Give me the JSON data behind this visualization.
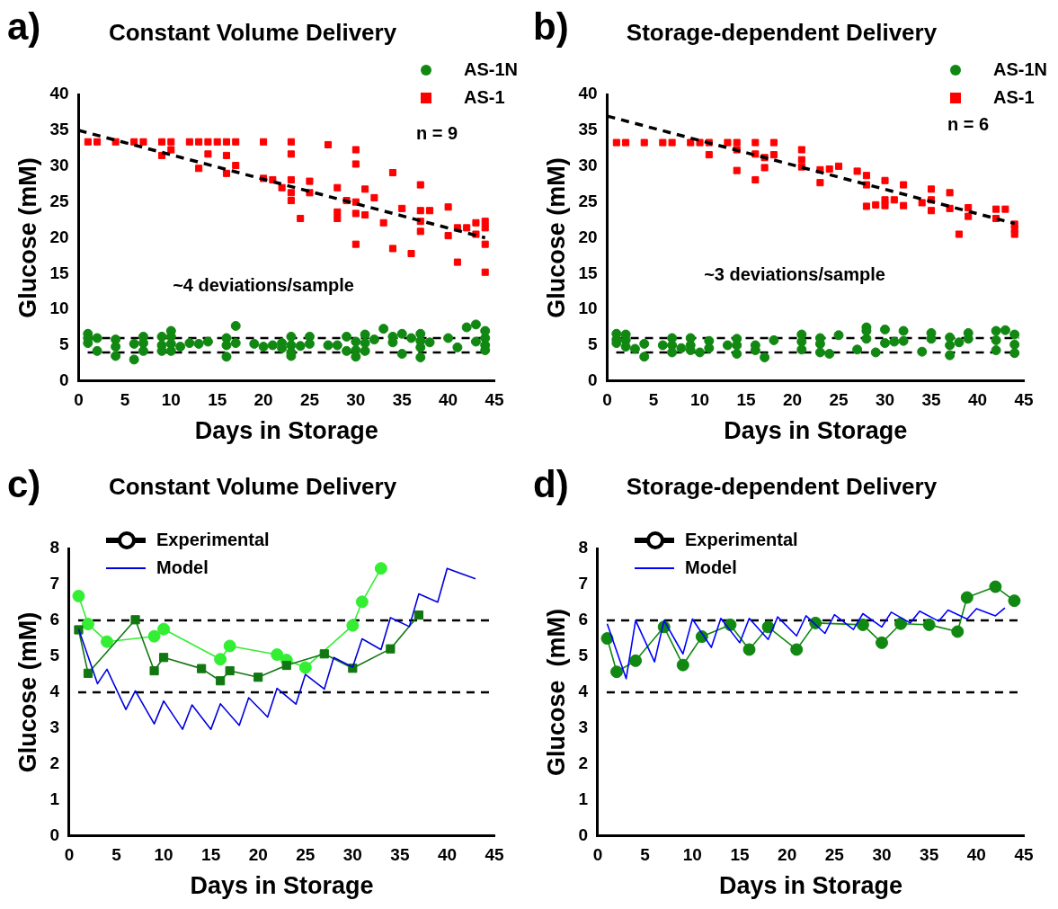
{
  "chart_data": [
    {
      "type": "scatter",
      "title": "Constant Volume Delivery",
      "xlabel": "Days in Storage",
      "ylabel": "Glucose (mM)",
      "xlim": [
        0,
        45
      ],
      "xticks": [
        0,
        5,
        10,
        15,
        20,
        25,
        30,
        35,
        40,
        45
      ],
      "ylim": [
        0,
        40
      ],
      "yticks": [
        0,
        5,
        10,
        15,
        20,
        25,
        30,
        35,
        40
      ],
      "legend": "top right",
      "annotations": [
        "a)",
        "n = 9",
        "~4 deviations/sample"
      ],
      "ref_lines": [
        {
          "axis": "y",
          "value": 6,
          "color": "#000000",
          "line_style": "dashed"
        },
        {
          "axis": "y",
          "value": 4,
          "color": "#000000",
          "line_style": "dashed"
        }
      ],
      "series": [
        {
          "name": "AS-1N",
          "marker": "circle",
          "color": "#118811",
          "x": [
            1,
            1,
            1,
            2,
            2,
            4,
            4,
            4,
            6,
            6,
            7,
            7,
            7,
            9,
            9,
            9,
            10,
            10,
            10,
            10,
            11,
            12,
            13,
            14,
            16,
            16,
            16,
            17,
            17,
            19,
            20,
            21,
            22,
            22,
            23,
            23,
            23,
            23,
            24,
            25,
            25,
            27,
            28,
            29,
            29,
            30,
            30,
            30,
            31,
            31,
            31,
            32,
            33,
            34,
            34,
            35,
            35,
            36,
            37,
            37,
            37,
            37,
            38,
            40,
            41,
            42,
            43,
            43,
            44,
            44,
            44,
            44
          ],
          "values": [
            6.6,
            6.0,
            5.3,
            6.0,
            4.2,
            5.8,
            4.8,
            3.5,
            5.2,
            3.0,
            6.2,
            5.3,
            4.2,
            6.2,
            5.0,
            4.2,
            7.0,
            6.2,
            5.2,
            4.2,
            4.8,
            5.3,
            5.2,
            5.5,
            6.0,
            5.0,
            3.4,
            7.7,
            5.3,
            5.2,
            4.8,
            5.0,
            5.3,
            4.6,
            6.2,
            5.0,
            4.0,
            3.5,
            4.9,
            6.2,
            5.2,
            5.0,
            5.0,
            6.2,
            4.2,
            5.5,
            4.3,
            3.4,
            6.5,
            5.3,
            4.2,
            5.8,
            7.3,
            6.2,
            5.4,
            6.6,
            3.8,
            6.0,
            6.6,
            5.6,
            4.7,
            3.3,
            5.4,
            6.0,
            4.7,
            7.5,
            7.9,
            5.5,
            7.0,
            6.0,
            5.0,
            4.3
          ]
        },
        {
          "name": "AS-1",
          "marker": "square",
          "color": "#ff0000",
          "x": [
            1,
            2,
            4,
            6,
            7,
            9,
            9,
            10,
            10,
            12,
            13,
            13,
            14,
            14,
            15,
            16,
            16,
            16,
            17,
            17,
            20,
            20,
            21,
            22,
            23,
            23,
            23,
            23,
            23,
            24,
            25,
            25,
            27,
            28,
            28,
            28,
            29,
            30,
            30,
            30,
            30,
            30,
            31,
            31,
            32,
            33,
            34,
            34,
            35,
            36,
            37,
            37,
            37,
            37,
            38,
            40,
            40,
            41,
            41,
            42,
            43,
            43,
            44,
            44,
            44,
            44
          ],
          "values": [
            33.4,
            33.4,
            33.4,
            33.4,
            33.4,
            33.4,
            31.5,
            33.4,
            32.3,
            33.4,
            33.4,
            29.7,
            33.4,
            31.7,
            33.4,
            33.4,
            31.5,
            29,
            33.4,
            30.1,
            33.4,
            28.3,
            28.1,
            27,
            33.4,
            31.7,
            28.1,
            26.3,
            25.2,
            22.7,
            27.9,
            26.3,
            33,
            27,
            23.6,
            22.7,
            25.2,
            32.3,
            30.3,
            25,
            23.4,
            19.1,
            26.8,
            23.2,
            25.6,
            22.1,
            29.1,
            18.5,
            24.1,
            17.8,
            27.4,
            23.8,
            22.3,
            20.9,
            23.8,
            24.3,
            20.3,
            21.4,
            16.6,
            21.4,
            22.1,
            20.5,
            22.3,
            21.4,
            19.1,
            15.2
          ]
        },
        {
          "type": "line",
          "marker": "none",
          "line_style": "dashed",
          "color": "#000000",
          "x": [
            0,
            44
          ],
          "values": [
            35,
            20
          ]
        }
      ]
    },
    {
      "type": "scatter",
      "title": "Storage-dependent Delivery",
      "xlabel": "Days in Storage",
      "ylabel": "Glucose (mM)",
      "xlim": [
        0,
        45
      ],
      "xticks": [
        0,
        5,
        10,
        15,
        20,
        25,
        30,
        35,
        40,
        45
      ],
      "ylim": [
        0,
        40
      ],
      "yticks": [
        0,
        5,
        10,
        15,
        20,
        25,
        30,
        35,
        40
      ],
      "legend": "top right",
      "annotations": [
        "b)",
        "n = 6",
        "~3 deviations/sample"
      ],
      "ref_lines": [
        {
          "axis": "y",
          "value": 6,
          "color": "#000000",
          "line_style": "dashed"
        },
        {
          "axis": "y",
          "value": 4,
          "color": "#000000",
          "line_style": "dashed"
        }
      ],
      "series": [
        {
          "name": "AS-1N",
          "marker": "circle",
          "color": "#118811",
          "x": [
            1,
            1,
            1,
            2,
            2,
            2,
            3,
            4,
            4,
            6,
            7,
            7,
            7,
            8,
            9,
            9,
            9,
            10,
            11,
            11,
            13,
            14,
            14,
            14,
            16,
            16,
            17,
            18,
            21,
            21,
            21,
            23,
            23,
            23,
            24,
            25,
            27,
            28,
            28,
            28,
            29,
            30,
            30,
            31,
            32,
            32,
            34,
            35,
            35,
            37,
            37,
            37,
            38,
            39,
            39,
            42,
            42,
            42,
            43,
            44,
            44,
            44
          ],
          "values": [
            6.6,
            5.8,
            5.3,
            6.5,
            5.7,
            4.8,
            4.5,
            5.2,
            3.4,
            5.0,
            6.0,
            5.0,
            4.0,
            4.6,
            6.0,
            5.0,
            4.3,
            4.0,
            5.6,
            4.6,
            5.0,
            5.9,
            5.0,
            3.8,
            5.0,
            4.3,
            3.3,
            5.7,
            6.5,
            5.5,
            4.4,
            6.0,
            5.2,
            4.0,
            3.8,
            6.4,
            4.4,
            7.5,
            7.0,
            5.9,
            4.0,
            7.2,
            5.3,
            5.5,
            7.0,
            5.6,
            4.1,
            6.7,
            5.9,
            6.1,
            5.0,
            3.6,
            5.4,
            6.7,
            5.9,
            7.0,
            5.7,
            4.3,
            7.1,
            6.5,
            5.1,
            3.9
          ]
        },
        {
          "name": "AS-1",
          "marker": "square",
          "color": "#ff0000",
          "x": [
            1,
            2,
            4,
            6,
            7,
            9,
            10,
            11,
            11,
            13,
            14,
            14,
            14,
            16,
            16,
            16,
            17,
            17,
            18,
            18,
            21,
            21,
            21,
            23,
            23,
            24,
            25,
            27,
            28,
            28,
            28,
            29,
            30,
            30,
            30,
            31,
            32,
            32,
            34,
            35,
            35,
            35,
            37,
            37,
            38,
            39,
            39,
            42,
            42,
            43,
            44,
            44,
            44
          ],
          "values": [
            33.3,
            33.3,
            33.3,
            33.3,
            33.3,
            33.3,
            33.3,
            33.3,
            31.6,
            33.3,
            33.3,
            32.3,
            29.4,
            33.3,
            31.7,
            28.1,
            31.2,
            29.8,
            33.3,
            31.6,
            32.3,
            30.9,
            29.9,
            29.5,
            27.7,
            29.6,
            30.0,
            29.3,
            28.7,
            27.4,
            24.4,
            24.6,
            28.0,
            25.3,
            24.5,
            25.3,
            27.4,
            24.5,
            24.9,
            26.8,
            25.3,
            23.8,
            26.3,
            24.1,
            20.5,
            24.2,
            23.0,
            24.0,
            22.7,
            24.0,
            21.9,
            21.2,
            20.5
          ]
        },
        {
          "type": "line",
          "marker": "none",
          "line_style": "dashed",
          "color": "#000000",
          "x": [
            0,
            44
          ],
          "values": [
            37,
            22
          ]
        }
      ]
    },
    {
      "type": "line",
      "title": "Constant Volume Delivery",
      "xlabel": "Days in Storage",
      "ylabel": "Glucose (mM)",
      "xlim": [
        0,
        45
      ],
      "xticks": [
        0,
        5,
        10,
        15,
        20,
        25,
        30,
        35,
        40,
        45
      ],
      "ylim": [
        0,
        8
      ],
      "yticks": [
        0,
        1,
        2,
        3,
        4,
        5,
        6,
        7,
        8
      ],
      "legend": "top left",
      "annotations": [
        "c)"
      ],
      "ref_lines": [
        {
          "axis": "y",
          "value": 6,
          "color": "#000000",
          "line_style": "dashed"
        },
        {
          "axis": "y",
          "value": 4,
          "color": "#000000",
          "line_style": "dashed"
        }
      ],
      "series": [
        {
          "name": "Experimental",
          "marker": "circle",
          "color": "#000000"
        },
        {
          "name": "Model",
          "marker": "none",
          "color": "#0000dd",
          "x": [
            1,
            3,
            4,
            6,
            7,
            9,
            10,
            12,
            13,
            15,
            16,
            18,
            19,
            21,
            22,
            24,
            25,
            27,
            28,
            30,
            31,
            33,
            34,
            36,
            37,
            39,
            40,
            43
          ],
          "values": [
            5.76,
            4.24,
            4.64,
            3.52,
            4.04,
            3.12,
            3.76,
            2.97,
            3.65,
            2.97,
            3.68,
            3.08,
            3.85,
            3.31,
            4.11,
            3.67,
            4.5,
            4.09,
            4.97,
            4.7,
            5.49,
            5.19,
            6.08,
            5.83,
            6.74,
            6.51,
            7.45,
            7.16
          ]
        },
        {
          "marker": "circle",
          "color": "#33ee33",
          "x": [
            1,
            2,
            4,
            9,
            10,
            16,
            17,
            22,
            23,
            25,
            30,
            31,
            33
          ],
          "values": [
            6.68,
            5.9,
            5.41,
            5.56,
            5.76,
            4.92,
            5.29,
            5.05,
            4.9,
            4.69,
            5.86,
            6.52,
            7.45
          ]
        },
        {
          "marker": "square",
          "color": "#117711",
          "x": [
            1,
            2,
            7,
            9,
            10,
            14,
            16,
            17,
            20,
            23,
            27,
            30,
            34,
            37
          ],
          "values": [
            5.74,
            4.53,
            6.02,
            4.6,
            4.97,
            4.66,
            4.32,
            4.6,
            4.42,
            4.75,
            5.07,
            4.67,
            5.21,
            6.15
          ]
        }
      ]
    },
    {
      "type": "line",
      "title": "Storage-dependent Delivery",
      "xlabel": "Days in Storage",
      "ylabel": "Glucose  (mM)",
      "xlim": [
        0,
        45
      ],
      "xticks": [
        0,
        5,
        10,
        15,
        20,
        25,
        30,
        35,
        40,
        45
      ],
      "ylim": [
        0,
        8
      ],
      "yticks": [
        0,
        1,
        2,
        3,
        4,
        5,
        6,
        7,
        8
      ],
      "legend": "top left",
      "annotations": [
        "d)"
      ],
      "ref_lines": [
        {
          "axis": "y",
          "value": 6,
          "color": "#000000",
          "line_style": "dashed"
        },
        {
          "axis": "y",
          "value": 4,
          "color": "#000000",
          "line_style": "dashed"
        }
      ],
      "series": [
        {
          "name": "Experimental",
          "marker": "circle",
          "color": "#000000"
        },
        {
          "name": "Model",
          "marker": "none",
          "color": "#0000ff",
          "x": [
            1,
            3,
            4,
            6,
            7,
            9,
            10,
            12,
            13,
            15,
            16,
            18,
            19,
            21,
            22,
            24,
            25,
            27,
            28,
            30,
            31,
            33,
            34,
            36,
            37,
            39,
            40,
            42,
            43
          ],
          "values": [
            5.91,
            4.38,
            6.0,
            4.85,
            6.0,
            5.07,
            6.04,
            5.25,
            6.06,
            5.38,
            6.06,
            5.47,
            6.1,
            5.57,
            6.13,
            5.64,
            6.16,
            5.75,
            6.19,
            5.82,
            6.23,
            5.93,
            6.26,
            5.98,
            6.29,
            6.04,
            6.33,
            6.13,
            6.35
          ]
        },
        {
          "marker": "circle",
          "color": "#118811",
          "x": [
            1,
            2,
            4,
            7,
            9,
            11,
            14,
            16,
            18,
            21,
            23,
            28,
            30,
            32,
            35,
            38,
            39,
            42,
            44
          ],
          "values": [
            5.5,
            4.57,
            4.88,
            5.82,
            4.76,
            5.55,
            5.88,
            5.19,
            5.82,
            5.19,
            5.93,
            5.88,
            5.38,
            5.91,
            5.88,
            5.69,
            6.64,
            6.94,
            6.55
          ]
        }
      ]
    }
  ]
}
